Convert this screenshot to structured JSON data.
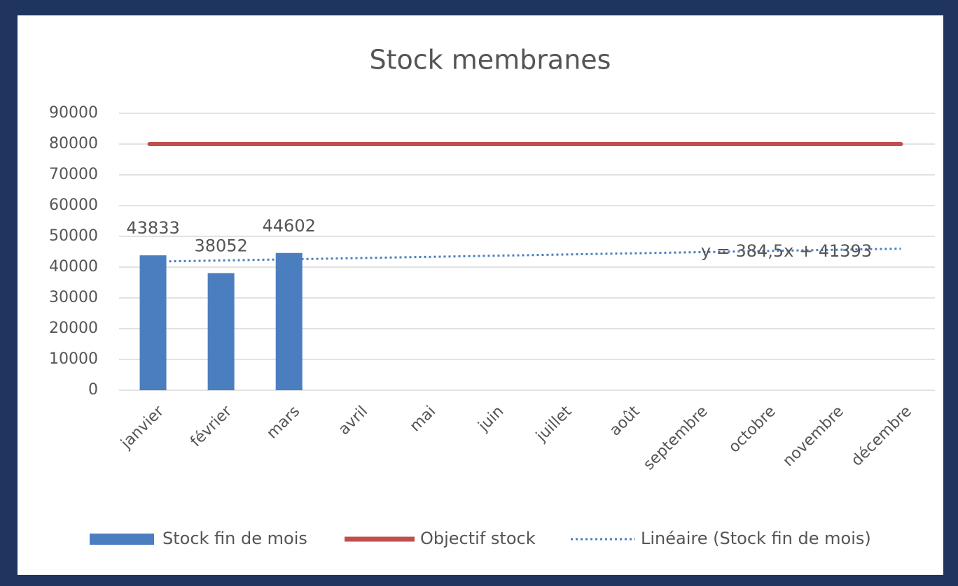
{
  "chart_data": {
    "type": "bar",
    "title": "Stock membranes",
    "categories": [
      "janvier",
      "février",
      "mars",
      "avril",
      "mai",
      "juin",
      "juillet",
      "août",
      "septembre",
      "octobre",
      "novembre",
      "décembre"
    ],
    "series": [
      {
        "name": "Stock fin de mois",
        "type": "bar",
        "color": "#4a7ebf",
        "values": [
          43833,
          38052,
          44602,
          null,
          null,
          null,
          null,
          null,
          null,
          null,
          null,
          null
        ]
      },
      {
        "name": "Objectif stock",
        "type": "line",
        "color": "#c0504d",
        "values": [
          80000,
          80000,
          80000,
          80000,
          80000,
          80000,
          80000,
          80000,
          80000,
          80000,
          80000,
          80000
        ]
      },
      {
        "name": "Linéaire (Stock fin de mois)",
        "type": "line",
        "dashed": true,
        "color": "#4a7ebf",
        "values": [
          41777.5,
          42162,
          42546.5,
          42931,
          43315.5,
          43700,
          44084.5,
          44469,
          44853.5,
          45238,
          45622.5,
          46007
        ]
      }
    ],
    "annotations": [
      "y = 384,5x + 41393"
    ],
    "ylim": [
      0,
      90000
    ],
    "yticks": [
      0,
      10000,
      20000,
      30000,
      40000,
      50000,
      60000,
      70000,
      80000,
      90000
    ],
    "grid": true,
    "legend": "bottom"
  }
}
